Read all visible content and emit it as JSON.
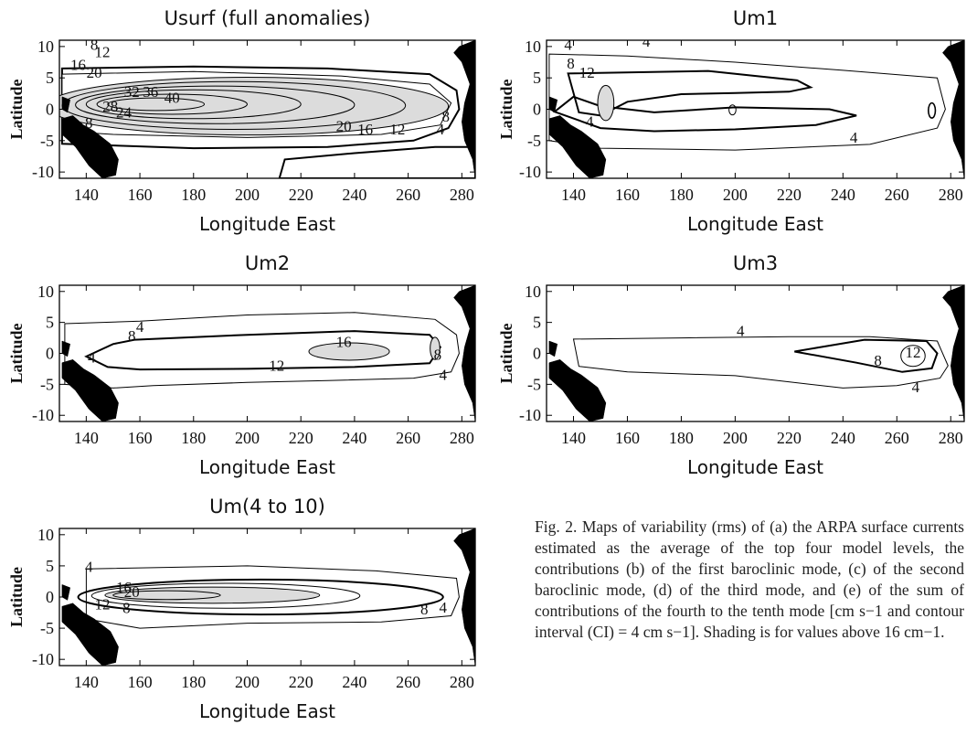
{
  "caption": "Fig. 2. Maps of variability (rms) of (a) the ARPA surface currents estimated as the average of the top four model levels, the contributions (b) of the first baroclinic mode, (c) of the second baroclinic mode, (d) of the third mode, and (e) of the sum of contributions of the fourth to the tenth mode [cm s−1 and contour interval (CI) = 4 cm s−1]. Shading is for values above 16 cm−1.",
  "chart_data": [
    {
      "type": "contour",
      "title": "Usurf (full anomalies)",
      "xlabel": "Longitude East",
      "ylabel": "Latitude",
      "xlim": [
        130,
        285
      ],
      "ylim": [
        -11,
        11
      ],
      "xticks": [
        "140",
        "160",
        "180",
        "200",
        "220",
        "240",
        "260",
        "280"
      ],
      "yticks": [
        "10",
        "5",
        "0",
        "-5",
        "-10"
      ],
      "contour_interval": 4,
      "shading_threshold": 16,
      "contour_labels": [
        {
          "text": "8",
          "lon": 143,
          "lat": 9.5
        },
        {
          "text": "12",
          "lon": 146,
          "lat": 8.3
        },
        {
          "text": "16",
          "lon": 137,
          "lat": 6.3
        },
        {
          "text": "20",
          "lon": 143,
          "lat": 5.0
        },
        {
          "text": "32",
          "lon": 157,
          "lat": 2.0
        },
        {
          "text": "36",
          "lon": 164,
          "lat": 2.0
        },
        {
          "text": "40",
          "lon": 172,
          "lat": 1.0
        },
        {
          "text": "28",
          "lon": 149,
          "lat": -0.4
        },
        {
          "text": "24",
          "lon": 154,
          "lat": -1.3
        },
        {
          "text": "8",
          "lon": 141,
          "lat": -3.0
        },
        {
          "text": "20",
          "lon": 236,
          "lat": -3.5
        },
        {
          "text": "16",
          "lon": 244,
          "lat": -4.0
        },
        {
          "text": "12",
          "lon": 256,
          "lat": -4.0
        },
        {
          "text": "4",
          "lon": 272,
          "lat": -4.0
        },
        {
          "text": "8",
          "lon": 274,
          "lat": -2.0
        }
      ]
    },
    {
      "type": "contour",
      "title": "Um1",
      "xlabel": "Longitude East",
      "ylabel": "Latitude",
      "xlim": [
        130,
        285
      ],
      "ylim": [
        -11,
        11
      ],
      "xticks": [
        "140",
        "160",
        "180",
        "200",
        "220",
        "240",
        "260",
        "280"
      ],
      "yticks": [
        "10",
        "5",
        "0",
        "-5",
        "-10"
      ],
      "contour_interval": 4,
      "shading_threshold": 16,
      "contour_labels": [
        {
          "text": "4",
          "lon": 138,
          "lat": 9.5
        },
        {
          "text": "4",
          "lon": 167,
          "lat": 10.0
        },
        {
          "text": "8",
          "lon": 139,
          "lat": 6.5
        },
        {
          "text": "12",
          "lon": 145,
          "lat": 5.0
        },
        {
          "text": "4",
          "lon": 146,
          "lat": -2.8
        },
        {
          "text": "4",
          "lon": 244,
          "lat": -5.3
        }
      ]
    },
    {
      "type": "contour",
      "title": "Um2",
      "xlabel": "Longitude East",
      "ylabel": "Latitude",
      "xlim": [
        130,
        285
      ],
      "ylim": [
        -11,
        11
      ],
      "xticks": [
        "140",
        "160",
        "180",
        "200",
        "220",
        "240",
        "260",
        "280"
      ],
      "yticks": [
        "10",
        "5",
        "0",
        "-5",
        "-10"
      ],
      "contour_interval": 4,
      "shading_threshold": 16,
      "contour_labels": [
        {
          "text": "8",
          "lon": 157,
          "lat": 2.0
        },
        {
          "text": "4",
          "lon": 160,
          "lat": 3.5
        },
        {
          "text": "4",
          "lon": 142,
          "lat": -1.5
        },
        {
          "text": "16",
          "lon": 236,
          "lat": 1.0
        },
        {
          "text": "12",
          "lon": 211,
          "lat": -2.8
        },
        {
          "text": "8",
          "lon": 271,
          "lat": -1.0
        },
        {
          "text": "4",
          "lon": 273,
          "lat": -4.3
        }
      ]
    },
    {
      "type": "contour",
      "title": "Um3",
      "xlabel": "Longitude East",
      "ylabel": "Latitude",
      "xlim": [
        130,
        285
      ],
      "ylim": [
        -11,
        11
      ],
      "xticks": [
        "140",
        "160",
        "180",
        "200",
        "220",
        "240",
        "260",
        "280"
      ],
      "yticks": [
        "10",
        "5",
        "0",
        "-5",
        "-10"
      ],
      "contour_interval": 4,
      "shading_threshold": 16,
      "contour_labels": [
        {
          "text": "4",
          "lon": 202,
          "lat": 2.8
        },
        {
          "text": "8",
          "lon": 253,
          "lat": -2.0
        },
        {
          "text": "12",
          "lon": 266,
          "lat": -0.7
        },
        {
          "text": "4",
          "lon": 267,
          "lat": -6.3
        }
      ]
    },
    {
      "type": "contour",
      "title": "Um(4 to 10)",
      "xlabel": "Longitude East",
      "ylabel": "Latitude",
      "xlim": [
        130,
        285
      ],
      "ylim": [
        -11,
        11
      ],
      "xticks": [
        "140",
        "160",
        "180",
        "200",
        "220",
        "240",
        "260",
        "280"
      ],
      "yticks": [
        "10",
        "5",
        "0",
        "-5",
        "-10"
      ],
      "contour_interval": 4,
      "shading_threshold": 16,
      "contour_labels": [
        {
          "text": "4",
          "lon": 141,
          "lat": 4.0
        },
        {
          "text": "16",
          "lon": 154,
          "lat": 0.7
        },
        {
          "text": "20",
          "lon": 157,
          "lat": 0.0
        },
        {
          "text": "12",
          "lon": 146,
          "lat": -2.0
        },
        {
          "text": "8",
          "lon": 155,
          "lat": -2.6
        },
        {
          "text": "8",
          "lon": 266,
          "lat": -2.8
        },
        {
          "text": "4",
          "lon": 273,
          "lat": -2.5
        }
      ]
    }
  ]
}
